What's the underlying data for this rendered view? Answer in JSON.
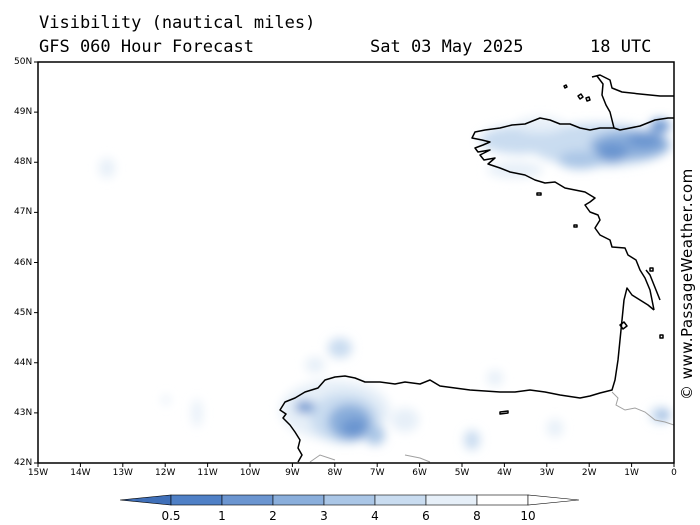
{
  "header": {
    "title": "Visibility (nautical miles)",
    "model": "GFS 060 Hour Forecast",
    "date": "Sat 03 May 2025",
    "time": "18 UTC"
  },
  "watermark": "© www.PassageWeather.com",
  "axes": {
    "lat_labels": [
      "50N",
      "49N",
      "48N",
      "47N",
      "46N",
      "45N",
      "44N",
      "43N",
      "42N"
    ],
    "lon_labels": [
      "15W",
      "14W",
      "13W",
      "12W",
      "11W",
      "10W",
      "9W",
      "8W",
      "7W",
      "6W",
      "5W",
      "4W",
      "3W",
      "2W",
      "1W",
      "0"
    ]
  },
  "colorbar": {
    "labels": [
      "0.5",
      "1",
      "2",
      "3",
      "4",
      "6",
      "8",
      "10"
    ],
    "colors": [
      "#3f6fb8",
      "#4f80c6",
      "#6b95d0",
      "#8aaedb",
      "#aac6e6",
      "#c9dcf0",
      "#e6eff8",
      "#ffffff"
    ]
  },
  "colors": {
    "coastline": "#000000",
    "border": "#a0a0a0"
  }
}
